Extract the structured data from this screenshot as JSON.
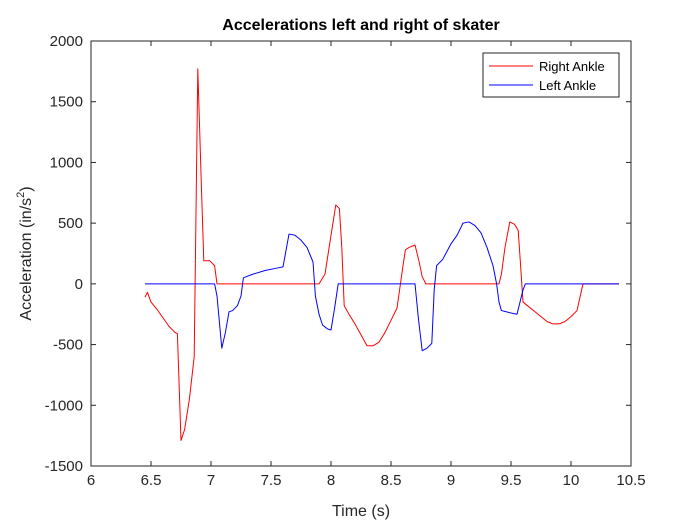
{
  "chart_data": {
    "type": "line",
    "title": "Accelerations left and right of skater",
    "xlabel": "Time (s)",
    "ylabel_main": "Acceleration (in/s",
    "ylabel_sup": "2",
    "ylabel_tail": ")",
    "xlim": [
      6,
      10.5
    ],
    "ylim": [
      -1500,
      2000
    ],
    "xticks": [
      6,
      6.5,
      7,
      7.5,
      8,
      8.5,
      9,
      9.5,
      10,
      10.5
    ],
    "xtick_labels": [
      "6",
      "6.5",
      "7",
      "7.5",
      "8",
      "8.5",
      "9",
      "9.5",
      "10",
      "10.5"
    ],
    "yticks": [
      -1500,
      -1000,
      -500,
      0,
      500,
      1000,
      1500,
      2000
    ],
    "ytick_labels": [
      "-1500",
      "-1000",
      "-500",
      "0",
      "500",
      "1000",
      "1500",
      "2000"
    ],
    "grid": false,
    "legend_position": "top-right",
    "series": [
      {
        "name": "Right Ankle",
        "color": "#ff0000",
        "points": [
          [
            6.45,
            -110
          ],
          [
            6.47,
            -70
          ],
          [
            6.5,
            -150
          ],
          [
            6.55,
            -210
          ],
          [
            6.6,
            -280
          ],
          [
            6.65,
            -350
          ],
          [
            6.7,
            -400
          ],
          [
            6.72,
            -410
          ],
          [
            6.75,
            -1290
          ],
          [
            6.78,
            -1200
          ],
          [
            6.82,
            -950
          ],
          [
            6.86,
            -600
          ],
          [
            6.89,
            1770
          ],
          [
            6.92,
            800
          ],
          [
            6.94,
            190
          ],
          [
            6.97,
            190
          ],
          [
            6.99,
            190
          ],
          [
            7.03,
            150
          ],
          [
            7.05,
            0
          ],
          [
            7.5,
            0
          ],
          [
            7.8,
            0
          ],
          [
            7.9,
            0
          ],
          [
            7.95,
            80
          ],
          [
            8.0,
            400
          ],
          [
            8.04,
            650
          ],
          [
            8.07,
            620
          ],
          [
            8.09,
            300
          ],
          [
            8.11,
            -180
          ],
          [
            8.15,
            -250
          ],
          [
            8.2,
            -330
          ],
          [
            8.25,
            -420
          ],
          [
            8.3,
            -510
          ],
          [
            8.35,
            -510
          ],
          [
            8.4,
            -480
          ],
          [
            8.45,
            -400
          ],
          [
            8.5,
            -300
          ],
          [
            8.55,
            -200
          ],
          [
            8.6,
            150
          ],
          [
            8.62,
            280
          ],
          [
            8.65,
            300
          ],
          [
            8.7,
            320
          ],
          [
            8.73,
            200
          ],
          [
            8.76,
            60
          ],
          [
            8.79,
            0
          ],
          [
            9.0,
            0
          ],
          [
            9.2,
            0
          ],
          [
            9.4,
            0
          ],
          [
            9.42,
            80
          ],
          [
            9.45,
            300
          ],
          [
            9.49,
            510
          ],
          [
            9.53,
            490
          ],
          [
            9.56,
            440
          ],
          [
            9.58,
            150
          ],
          [
            9.6,
            -150
          ],
          [
            9.65,
            -190
          ],
          [
            9.7,
            -230
          ],
          [
            9.75,
            -270
          ],
          [
            9.8,
            -310
          ],
          [
            9.85,
            -330
          ],
          [
            9.9,
            -330
          ],
          [
            9.95,
            -310
          ],
          [
            10.0,
            -270
          ],
          [
            10.05,
            -220
          ],
          [
            10.1,
            0
          ],
          [
            10.2,
            0
          ],
          [
            10.3,
            0
          ],
          [
            10.4,
            0
          ]
        ]
      },
      {
        "name": "Left Ankle",
        "color": "#0000ff",
        "points": [
          [
            6.45,
            0
          ],
          [
            6.7,
            0
          ],
          [
            6.9,
            0
          ],
          [
            7.0,
            0
          ],
          [
            7.03,
            0
          ],
          [
            7.05,
            -100
          ],
          [
            7.09,
            -530
          ],
          [
            7.12,
            -400
          ],
          [
            7.15,
            -230
          ],
          [
            7.18,
            -220
          ],
          [
            7.22,
            -180
          ],
          [
            7.25,
            -100
          ],
          [
            7.27,
            50
          ],
          [
            7.35,
            80
          ],
          [
            7.45,
            110
          ],
          [
            7.55,
            130
          ],
          [
            7.6,
            140
          ],
          [
            7.65,
            410
          ],
          [
            7.7,
            400
          ],
          [
            7.75,
            360
          ],
          [
            7.8,
            300
          ],
          [
            7.85,
            180
          ],
          [
            7.87,
            -100
          ],
          [
            7.9,
            -250
          ],
          [
            7.93,
            -340
          ],
          [
            7.97,
            -370
          ],
          [
            8.0,
            -380
          ],
          [
            8.03,
            -200
          ],
          [
            8.06,
            0
          ],
          [
            8.1,
            0
          ],
          [
            8.3,
            0
          ],
          [
            8.5,
            0
          ],
          [
            8.65,
            0
          ],
          [
            8.7,
            0
          ],
          [
            8.73,
            -300
          ],
          [
            8.76,
            -550
          ],
          [
            8.8,
            -530
          ],
          [
            8.84,
            -490
          ],
          [
            8.86,
            -50
          ],
          [
            8.88,
            150
          ],
          [
            8.93,
            200
          ],
          [
            9.0,
            330
          ],
          [
            9.05,
            400
          ],
          [
            9.1,
            500
          ],
          [
            9.15,
            510
          ],
          [
            9.2,
            480
          ],
          [
            9.25,
            420
          ],
          [
            9.3,
            300
          ],
          [
            9.35,
            150
          ],
          [
            9.38,
            0
          ],
          [
            9.4,
            -150
          ],
          [
            9.42,
            -220
          ],
          [
            9.46,
            -230
          ],
          [
            9.5,
            -240
          ],
          [
            9.55,
            -250
          ],
          [
            9.6,
            -50
          ],
          [
            9.62,
            0
          ],
          [
            9.8,
            0
          ],
          [
            10.0,
            0
          ],
          [
            10.2,
            0
          ],
          [
            10.4,
            0
          ]
        ]
      }
    ]
  }
}
